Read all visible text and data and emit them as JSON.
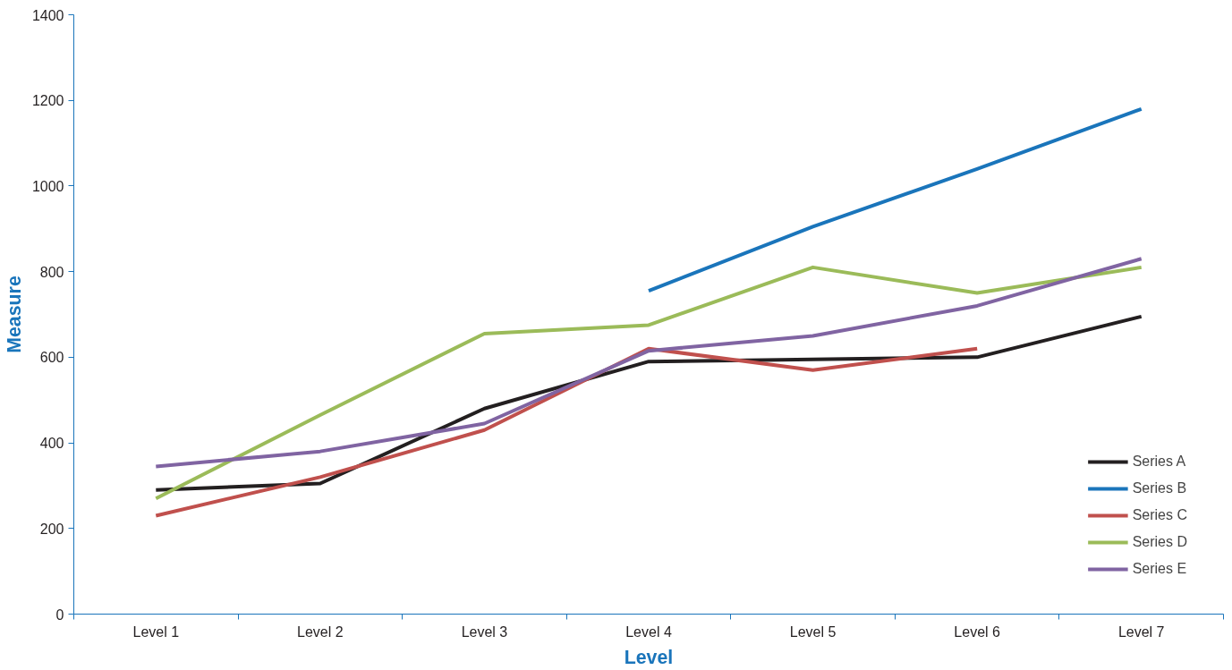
{
  "chart_data": {
    "type": "line",
    "xlabel": "Level",
    "ylabel": "Measure",
    "categories": [
      "Level 1",
      "Level 2",
      "Level 3",
      "Level 4",
      "Level 5",
      "Level 6",
      "Level 7"
    ],
    "series": [
      {
        "name": "Series A",
        "color": "#231f20",
        "values": [
          290,
          305,
          480,
          590,
          595,
          600,
          695
        ]
      },
      {
        "name": "Series B",
        "color": "#1a75bb",
        "values": [
          null,
          null,
          null,
          755,
          905,
          1040,
          1180
        ]
      },
      {
        "name": "Series C",
        "color": "#c0504d",
        "values": [
          230,
          320,
          430,
          620,
          570,
          620,
          null
        ]
      },
      {
        "name": "Series D",
        "color": "#9bbb59",
        "values": [
          270,
          465,
          655,
          675,
          810,
          750,
          810
        ]
      },
      {
        "name": "Series E",
        "color": "#8064a2",
        "values": [
          345,
          380,
          445,
          615,
          650,
          720,
          830
        ]
      }
    ],
    "ylim": [
      0,
      1400
    ],
    "yticks": [
      0,
      200,
      400,
      600,
      800,
      1000,
      1200,
      1400
    ],
    "grid": false,
    "legend": "bottom right",
    "marker": "none",
    "line_style": "solid"
  }
}
